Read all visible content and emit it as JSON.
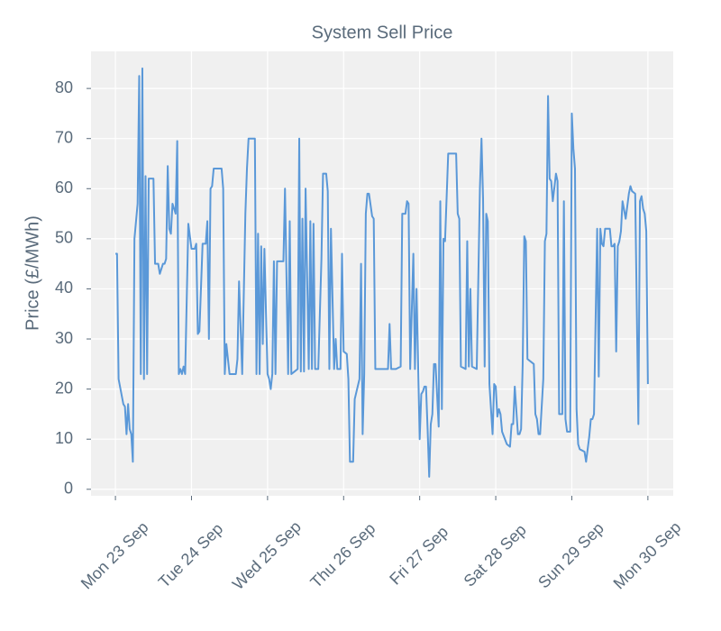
{
  "chart_data": {
    "type": "line",
    "title": "System Sell Price",
    "y_label": "Price (£/MWh)",
    "color": "#5a98d8",
    "grid": true,
    "xlim": [
      -7.7,
      176
    ],
    "ylim": [
      -1.3,
      87.4
    ],
    "xticks": [
      {
        "value": 0,
        "label": "Mon 23 Sep"
      },
      {
        "value": 24,
        "label": "Tue 24 Sep"
      },
      {
        "value": 48,
        "label": "Wed 25 Sep"
      },
      {
        "value": 72,
        "label": "Thu 26 Sep"
      },
      {
        "value": 96,
        "label": "Fri 27 Sep"
      },
      {
        "value": 120,
        "label": "Sat 28 Sep"
      },
      {
        "value": 144,
        "label": "Sun 29 Sep"
      },
      {
        "value": 168,
        "label": "Mon 30 Sep"
      }
    ],
    "yticks": [
      0,
      10,
      20,
      30,
      40,
      50,
      60,
      70,
      80
    ],
    "x": [
      0,
      0.5,
      1,
      2.5,
      3,
      3.5,
      4,
      4.5,
      5,
      5.5,
      6,
      7,
      7.5,
      8,
      8.5,
      9,
      9.5,
      10,
      10.5,
      12,
      12.5,
      13.5,
      14,
      15,
      15.5,
      16,
      16.5,
      17,
      17.5,
      18,
      19,
      19.5,
      20,
      20.5,
      21,
      21.5,
      22,
      23,
      24,
      25,
      25.5,
      26,
      26.5,
      27.5,
      28.5,
      29,
      29.5,
      30,
      30.5,
      31,
      33.5,
      34,
      34.5,
      35,
      36,
      38,
      38.5,
      39,
      40,
      41,
      41.5,
      42,
      44,
      44.5,
      45,
      45.5,
      46,
      46.5,
      47,
      48,
      48.5,
      49,
      49.5,
      50,
      50.5,
      51,
      53,
      53.5,
      54.5,
      55,
      55.5,
      56.5,
      57.5,
      58,
      58.5,
      59,
      59.5,
      60,
      61,
      61.5,
      62,
      62.5,
      63,
      64,
      65,
      65.5,
      66.5,
      67,
      67.5,
      68,
      69,
      69.5,
      70,
      71,
      71.5,
      72,
      73,
      73.5,
      74,
      75,
      75.5,
      77,
      77.5,
      78,
      78.5,
      79,
      79.5,
      80,
      81,
      81.5,
      82,
      86,
      86.5,
      87,
      88.5,
      90,
      90.5,
      91.5,
      92,
      92.5,
      93,
      94,
      94.5,
      95,
      96,
      96.5,
      97,
      97.5,
      98,
      98.5,
      99,
      99.5,
      100,
      100.5,
      101,
      102,
      102.5,
      103,
      103.5,
      104,
      105,
      107.5,
      108,
      108.5,
      109,
      110.5,
      111,
      111.5,
      112,
      112.5,
      114,
      115,
      115.5,
      116,
      116.5,
      117,
      117.5,
      118,
      119,
      119.5,
      120,
      120.5,
      121,
      121.5,
      122,
      123.5,
      124.5,
      125,
      125.5,
      126,
      127,
      127.5,
      128,
      128.5,
      129,
      129.5,
      130,
      131,
      132,
      132.5,
      133,
      133.5,
      134,
      135,
      135.5,
      136,
      136.5,
      137,
      137.5,
      138,
      139,
      139.5,
      140,
      141,
      141.5,
      142,
      142.5,
      143.5,
      144,
      144.5,
      145,
      145.5,
      146,
      146.5,
      148,
      148.5,
      149.5,
      150,
      150.5,
      151,
      152,
      152.5,
      153,
      153.5,
      154,
      154.5,
      156,
      156.5,
      157,
      157.5,
      158,
      158.5,
      159,
      159.5,
      160,
      161,
      162,
      162.5,
      163,
      164,
      165,
      165.5,
      166,
      166.5,
      167,
      167.5,
      168
    ],
    "values": [
      47,
      47,
      22,
      17,
      16.5,
      11,
      17,
      12,
      11,
      5.5,
      50,
      57,
      82.5,
      23,
      84,
      22,
      62.5,
      23,
      62,
      62,
      45,
      45,
      43,
      45,
      45,
      46,
      64.5,
      52,
      51,
      57,
      55,
      69.5,
      23,
      24,
      23,
      24.5,
      23,
      53,
      48,
      48,
      49,
      31,
      31.5,
      49,
      49,
      53.5,
      30,
      60,
      60.5,
      64,
      64,
      60,
      23,
      29,
      23,
      23,
      26,
      41.5,
      23,
      55,
      64,
      70,
      70,
      23,
      51,
      23,
      48.5,
      29,
      48,
      23,
      22,
      20,
      23,
      45.5,
      23,
      45.5,
      45.5,
      60,
      23,
      53.5,
      23,
      23.5,
      24,
      70,
      23.5,
      54,
      23.5,
      60,
      24,
      53.5,
      24,
      53,
      24,
      24,
      46,
      63,
      63,
      59.5,
      24,
      52,
      24,
      30,
      24,
      24,
      47,
      27.5,
      27,
      22,
      5.5,
      5.5,
      18,
      22,
      45,
      11,
      23,
      55,
      59,
      59,
      54.5,
      54,
      24,
      24,
      33,
      24,
      24,
      24.5,
      55,
      55,
      57.5,
      57,
      24,
      47,
      24,
      40,
      10,
      19,
      19.5,
      20.5,
      20.5,
      12,
      2.5,
      13,
      15,
      25,
      25,
      12.5,
      57.5,
      16,
      50,
      49.5,
      67,
      67,
      55,
      54,
      24.5,
      24,
      49.5,
      24.5,
      40,
      24.5,
      24,
      60,
      70,
      58,
      24.5,
      55,
      53.5,
      21,
      11,
      21,
      20.5,
      14.5,
      16,
      15,
      11.5,
      9,
      8.5,
      13,
      13,
      20.5,
      11,
      11,
      12,
      25,
      50.5,
      49.5,
      26,
      25.5,
      25,
      15,
      14,
      11,
      11,
      22,
      49.5,
      51,
      78.5,
      62,
      61.5,
      57.5,
      63,
      61.5,
      15,
      15,
      57.5,
      14,
      11.5,
      11.5,
      75,
      68,
      64,
      16,
      9,
      8,
      7.5,
      5.5,
      10.5,
      14,
      14,
      15,
      52,
      22.5,
      52,
      49,
      48.5,
      52,
      52,
      48.5,
      48.5,
      49,
      27.5,
      48.5,
      49.5,
      51.5,
      57.5,
      54,
      59,
      60.5,
      59.5,
      59,
      13,
      57.5,
      58.5,
      56,
      55,
      51.5,
      21
    ]
  }
}
